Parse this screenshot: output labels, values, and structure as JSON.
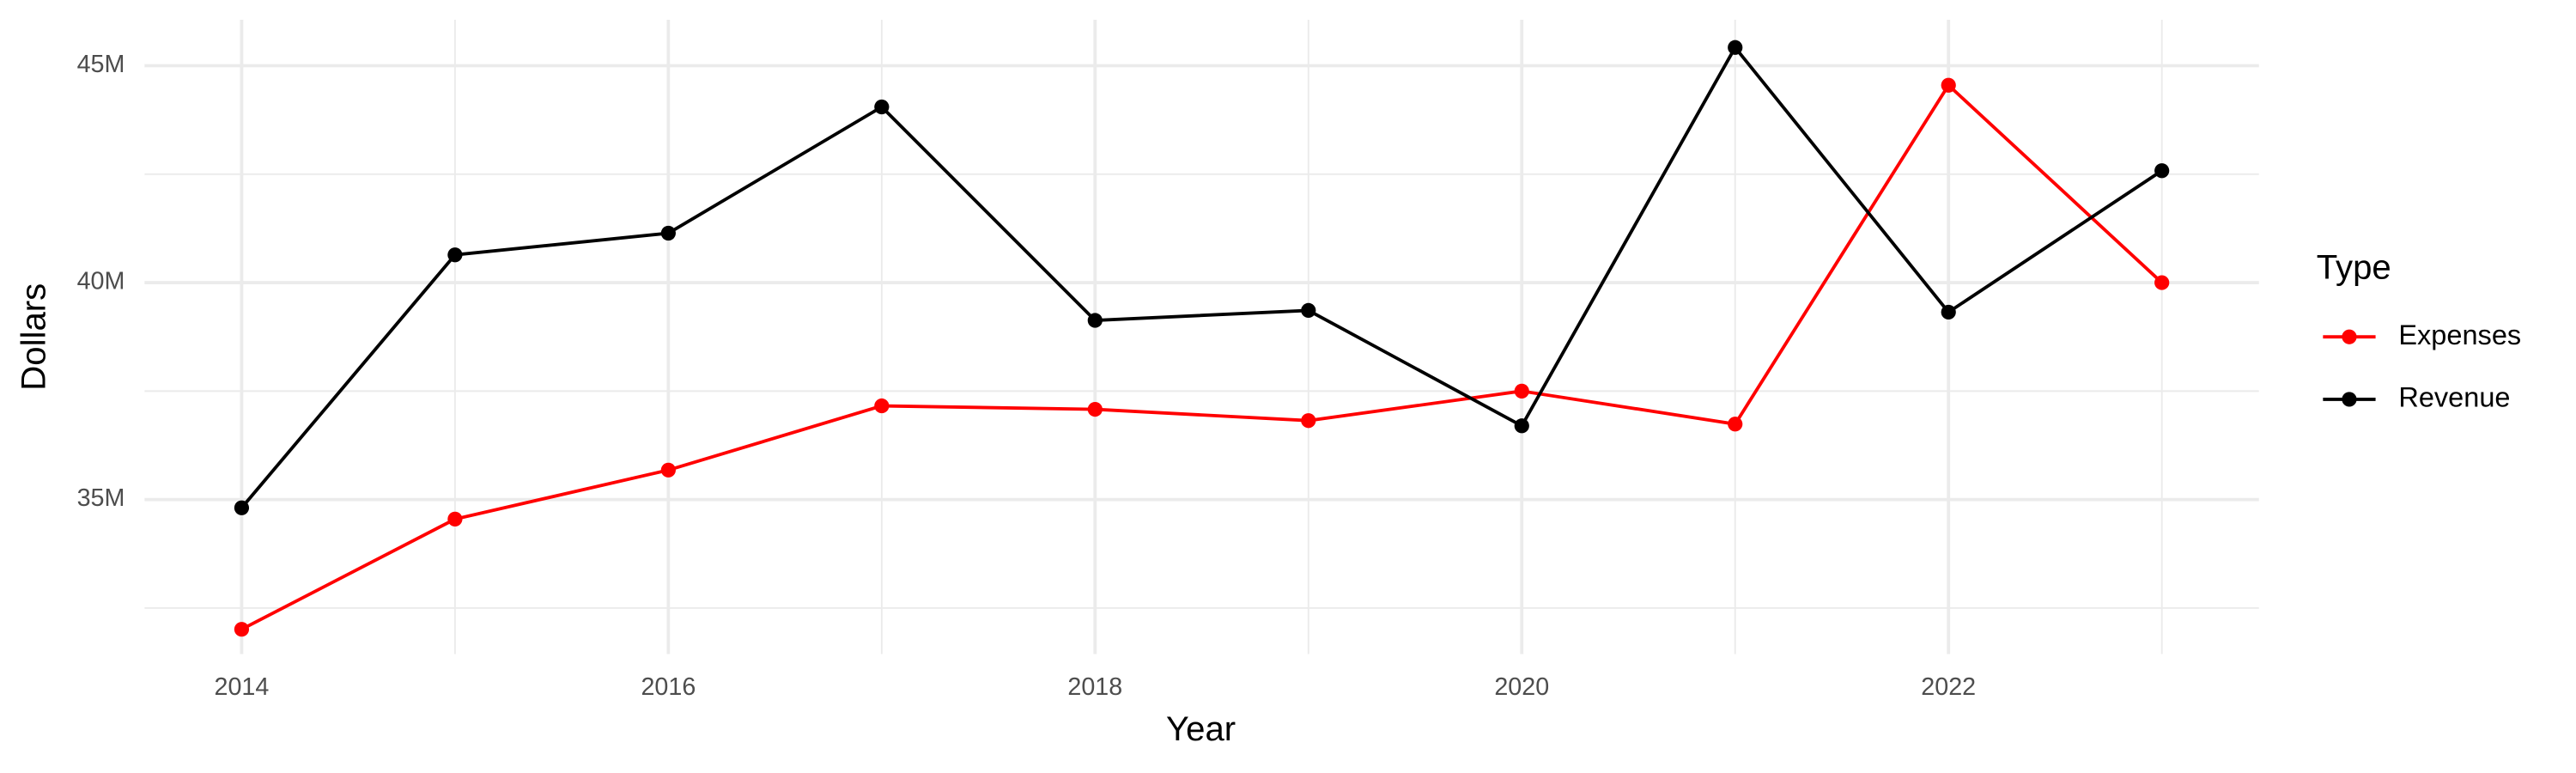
{
  "chart_data": {
    "type": "line",
    "x_label": "Year",
    "y_label": "Dollars",
    "legend_title": "Type",
    "legend_position": "right",
    "grid": true,
    "x": [
      2014,
      2015,
      2016,
      2017,
      2018,
      2019,
      2020,
      2021,
      2022,
      2023
    ],
    "series": [
      {
        "name": "Expenses",
        "color": "#ff0000",
        "values": [
          32010000,
          34550000,
          35680000,
          37160000,
          37080000,
          36820000,
          37500000,
          36740000,
          44550000,
          40000000
        ]
      },
      {
        "name": "Revenue",
        "color": "#000000",
        "values": [
          34810000,
          40640000,
          41140000,
          44050000,
          39130000,
          39360000,
          36700000,
          45420000,
          39320000,
          42580000
        ]
      }
    ],
    "xlim": [
      2013.545,
      2023.455
    ],
    "xticks": [
      2014,
      2016,
      2018,
      2020,
      2022
    ],
    "ylim": [
      31440000,
      46060000
    ],
    "yticks": [
      {
        "value": 35000000,
        "label": "35M"
      },
      {
        "value": 40000000,
        "label": "40M"
      },
      {
        "value": 45000000,
        "label": "45M"
      }
    ]
  }
}
